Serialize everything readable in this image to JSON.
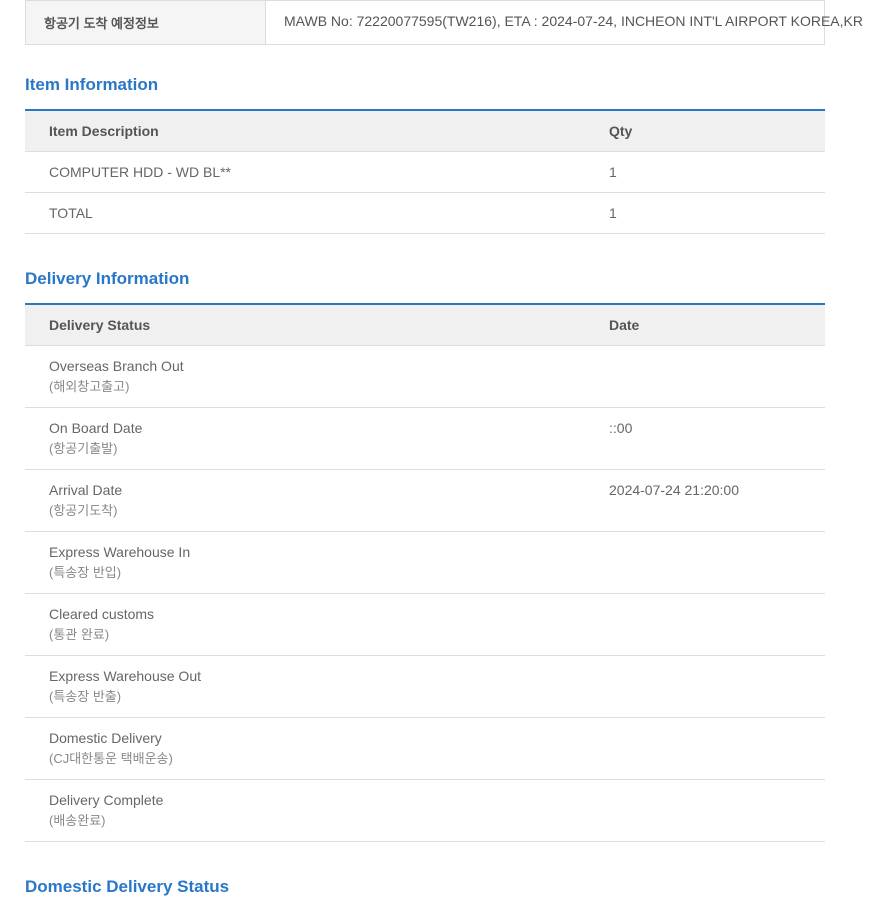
{
  "header": {
    "label": "항공기 도착 예정정보",
    "value": "MAWB No: 72220077595(TW216), ETA : 2024-07-24, INCHEON INT'L AIRPORT KOREA,KR"
  },
  "item_information": {
    "title": "Item Information",
    "columns": [
      "Item Description",
      "Qty"
    ],
    "rows": [
      {
        "description": "COMPUTER HDD - WD BL**",
        "qty": "1"
      },
      {
        "description": "TOTAL",
        "qty": "1"
      }
    ]
  },
  "delivery_information": {
    "title": "Delivery Information",
    "columns": [
      "Delivery Status",
      "Date"
    ],
    "rows": [
      {
        "status": "Overseas Branch Out",
        "sub": "(해외창고출고)",
        "date": ""
      },
      {
        "status": "On Board Date",
        "sub": "(항공기출발)",
        "date": "::00"
      },
      {
        "status": "Arrival Date",
        "sub": "(항공기도착)",
        "date": "2024-07-24 21:20:00"
      },
      {
        "status": "Express Warehouse In",
        "sub": "(특송장 반입)",
        "date": ""
      },
      {
        "status": "Cleared customs",
        "sub": "(통관 완료)",
        "date": ""
      },
      {
        "status": "Express Warehouse Out",
        "sub": "(특송장 반출)",
        "date": ""
      },
      {
        "status": "Domestic Delivery",
        "sub": "(CJ대한통운 택배운송)",
        "date": ""
      },
      {
        "status": "Delivery Complete",
        "sub": "(배송완료)",
        "date": ""
      }
    ]
  },
  "domestic_delivery": {
    "title": "Domestic Delivery Status"
  }
}
